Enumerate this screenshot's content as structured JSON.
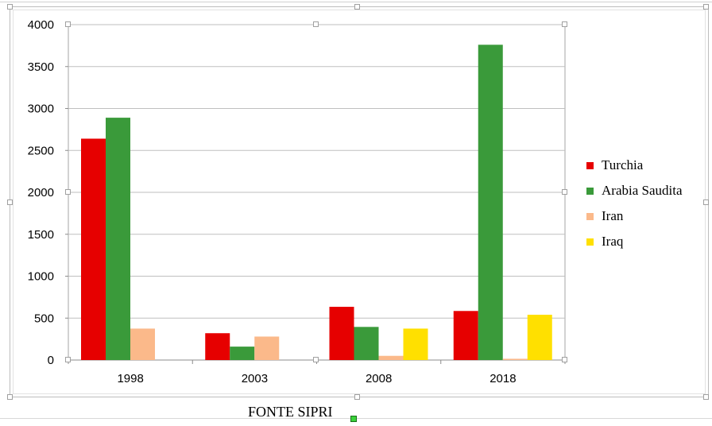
{
  "chart_data": {
    "type": "bar",
    "categories": [
      "1998",
      "2003",
      "2008",
      "2018"
    ],
    "series": [
      {
        "name": "Turchia",
        "color": "#e60000",
        "values": [
          2640,
          320,
          635,
          585
        ]
      },
      {
        "name": "Arabia Saudita",
        "color": "#3a9a3a",
        "values": [
          2890,
          160,
          395,
          3760
        ]
      },
      {
        "name": "Iran",
        "color": "#fbb98a",
        "values": [
          375,
          280,
          50,
          15
        ]
      },
      {
        "name": "Iraq",
        "color": "#ffe000",
        "values": [
          0,
          0,
          375,
          540
        ]
      }
    ],
    "yticks": [
      "0",
      "500",
      "1000",
      "1500",
      "2000",
      "2500",
      "3000",
      "3500",
      "4000"
    ],
    "ylim": [
      0,
      4000
    ],
    "grid": true,
    "legend_position": "right",
    "title": "",
    "xlabel": "",
    "ylabel": ""
  },
  "caption": "FONTE SIPRI"
}
